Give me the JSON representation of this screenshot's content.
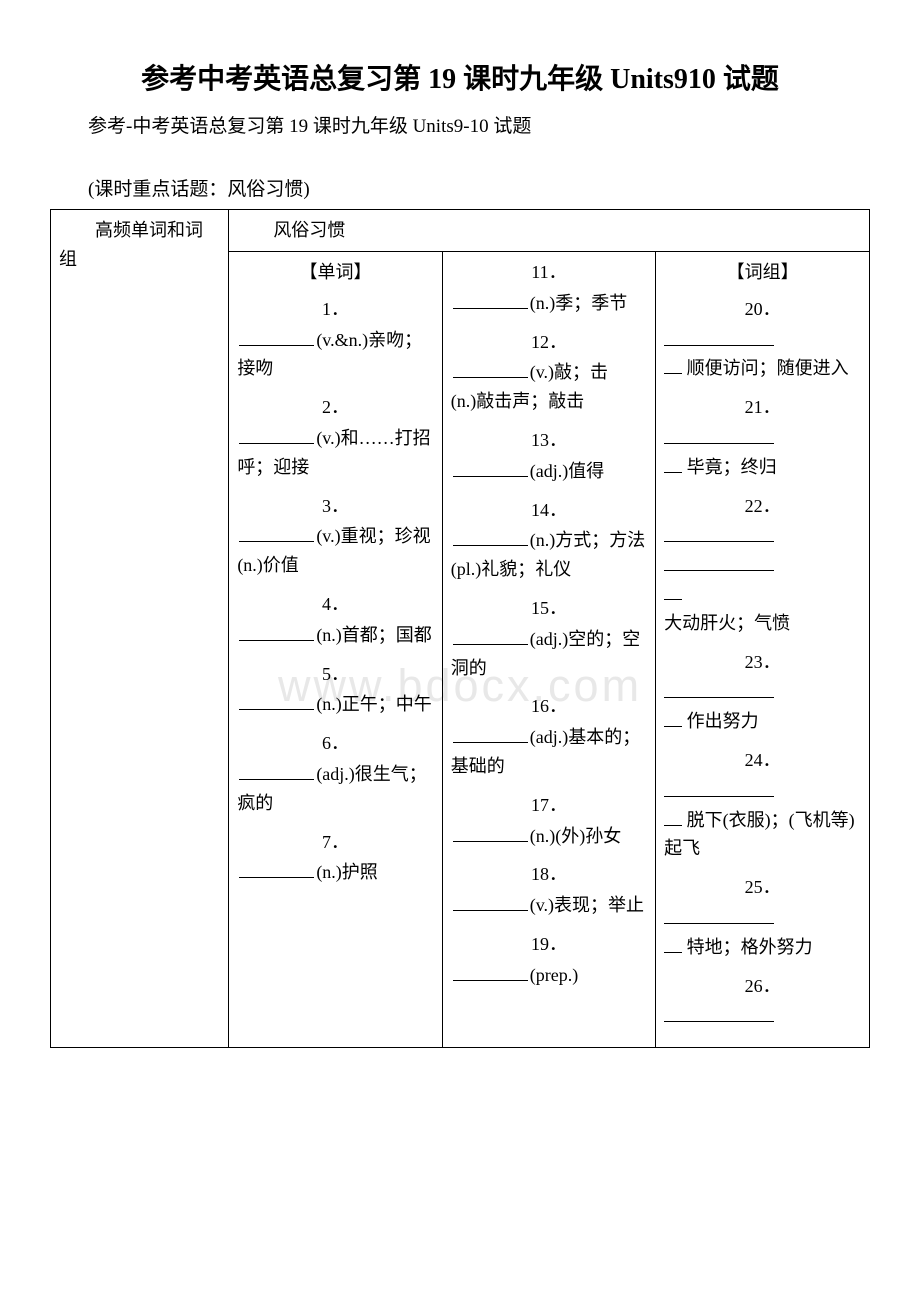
{
  "title": "参考中考英语总复习第 19 课时九年级 Units910 试题",
  "subtitle": "参考-中考英语总复习第 19 课时九年级 Units9-10 试题",
  "topic_label": "(课时重点话题：风俗习惯)",
  "watermark": "www.bdocx.com",
  "table": {
    "row_header": "高频单词和词组",
    "topic_cell": "风俗习惯",
    "col1_heading": "【单词】",
    "col3_heading": "【词组】",
    "col1": [
      {
        "n": "1．",
        "suffix": "(v.&n.)亲吻；接吻"
      },
      {
        "n": "2．",
        "suffix": "(v.)和……打招呼；迎接"
      },
      {
        "n": "3．",
        "suffix": "(v.)重视；珍视(n.)价值"
      },
      {
        "n": "4．",
        "suffix": "(n.)首都；国都"
      },
      {
        "n": "5．",
        "suffix": "(n.)正午；中午"
      },
      {
        "n": "6．",
        "suffix": "(adj.)很生气；疯的"
      },
      {
        "n": "7．",
        "suffix": "(n.)护照"
      }
    ],
    "col2": [
      {
        "n": "11．",
        "suffix": "(n.)季；季节"
      },
      {
        "n": "12．",
        "suffix": "(v.)敲；击　(n.)敲击声；敲击"
      },
      {
        "n": "13．",
        "suffix": "(adj.)值得"
      },
      {
        "n": "14．",
        "suffix": "(n.)方式；方法　(pl.)礼貌；礼仪"
      },
      {
        "n": "15．",
        "suffix": "(adj.)空的；空洞的"
      },
      {
        "n": "16．",
        "suffix": "(adj.)基本的；基础的"
      },
      {
        "n": "17．",
        "suffix": "(n.)(外)孙女"
      },
      {
        "n": "18．",
        "suffix": "(v.)表现；举止"
      },
      {
        "n": "19．",
        "suffix": "(prep.)"
      }
    ],
    "col3": [
      {
        "n": "20．",
        "suffix": "顺便访问；随便进入"
      },
      {
        "n": "21．",
        "suffix": "毕竟；终归"
      },
      {
        "n": "22．",
        "suffix": "大动肝火；气愤",
        "double": true
      },
      {
        "n": "23．",
        "suffix": "作出努力"
      },
      {
        "n": "24．",
        "suffix": "脱下(衣服)；(飞机等)起飞"
      },
      {
        "n": "25．",
        "suffix": "特地；格外努力"
      },
      {
        "n": "26．",
        "suffix": ""
      }
    ]
  },
  "colors": {
    "text": "#000000",
    "background": "#ffffff",
    "watermark": "#e8e8e8",
    "border": "#000000"
  }
}
